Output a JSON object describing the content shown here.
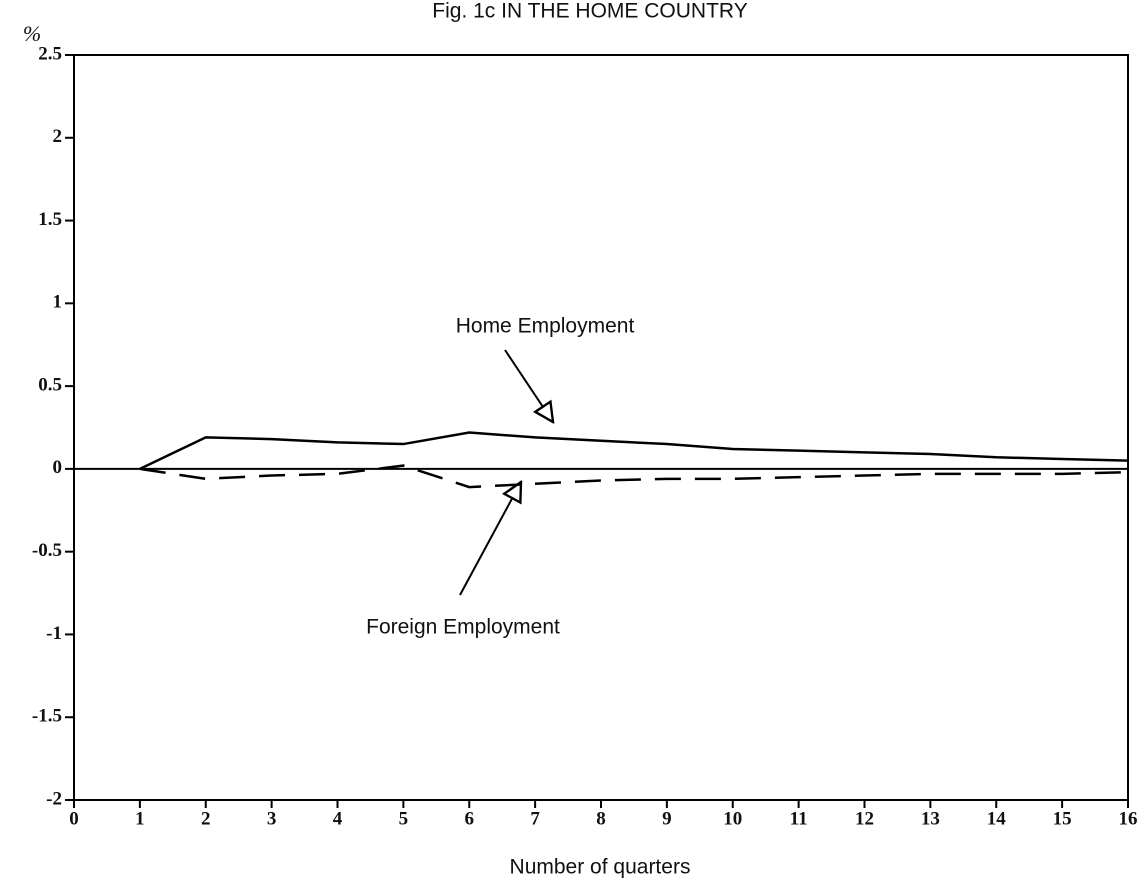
{
  "chart_data": {
    "type": "line",
    "title": "Fig. 1c IN THE HOME COUNTRY",
    "y_label": "%",
    "x_label": "Number of quarters",
    "x": [
      1,
      2,
      3,
      4,
      5,
      6,
      7,
      8,
      9,
      10,
      11,
      12,
      13,
      14,
      15,
      16
    ],
    "series": [
      {
        "name": "Home Employment",
        "color": "#000000",
        "dash": false,
        "values": [
          0,
          0.19,
          0.18,
          0.16,
          0.15,
          0.22,
          0.19,
          0.17,
          0.15,
          0.12,
          0.11,
          0.1,
          0.09,
          0.07,
          0.06,
          0.05
        ]
      },
      {
        "name": "Foreign Employment",
        "color": "#000000",
        "dash": true,
        "values": [
          0,
          -0.06,
          -0.04,
          -0.03,
          0.02,
          -0.11,
          -0.09,
          -0.07,
          -0.06,
          -0.06,
          -0.05,
          -0.04,
          -0.03,
          -0.03,
          -0.03,
          -0.02
        ]
      }
    ],
    "xlim": [
      0,
      16
    ],
    "xticks": [
      0,
      1,
      2,
      3,
      4,
      5,
      6,
      7,
      8,
      9,
      10,
      11,
      12,
      13,
      14,
      15,
      16
    ],
    "ylim": [
      -2,
      2.5
    ],
    "yticks": [
      -2,
      -1.5,
      -1,
      -0.5,
      0,
      0.5,
      1,
      1.5,
      2,
      2.5
    ],
    "zero_line": true
  }
}
